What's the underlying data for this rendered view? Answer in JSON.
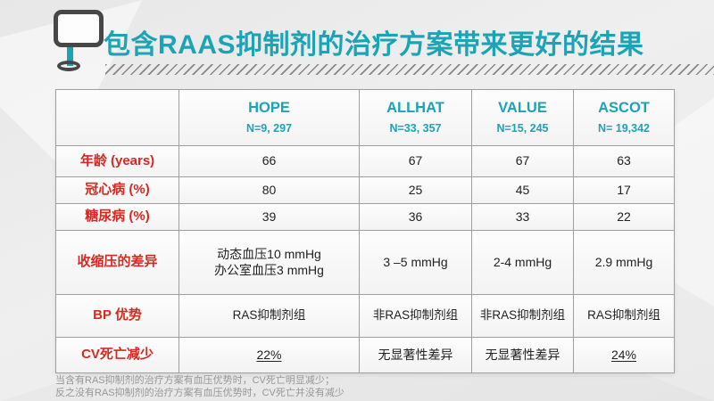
{
  "title": "包含RAAS抑制剂的治疗方案带来更好的结果",
  "colors": {
    "accent_teal": "#1ba3b6",
    "label_red": "#d42a22",
    "table_border_gray": "#9e9e9e",
    "icon_dark_gray": "#474747"
  },
  "table": {
    "corner": "",
    "columns": [
      {
        "name": "HOPE",
        "n": "N=9, 297"
      },
      {
        "name": "ALLHAT",
        "n": "N=33, 357"
      },
      {
        "name": "VALUE",
        "n": "N=15, 245"
      },
      {
        "name": "ASCOT",
        "n": "N= 19,342"
      }
    ],
    "rows": [
      {
        "label": "年龄 (years)",
        "values": [
          "66",
          "67",
          "67",
          "63"
        ]
      },
      {
        "label": "冠心病 (%)",
        "values": [
          "80",
          "25",
          "45",
          "17"
        ]
      },
      {
        "label": "糖尿病 (%)",
        "values": [
          "39",
          "36",
          "33",
          "22"
        ]
      },
      {
        "label": "收缩压的差异",
        "values": [
          "动态血压10 mmHg\n办公室血压3 mmHg",
          "3 –5 mmHg",
          "2-4 mmHg",
          "2.9 mmHg"
        ]
      },
      {
        "label": "BP 优势",
        "values": [
          "RAS抑制剂组",
          "非RAS抑制剂组",
          "非RAS抑制剂组",
          "RAS抑制剂组"
        ]
      },
      {
        "label": "CV死亡减少",
        "values": [
          "22%",
          "无显著性差异",
          "无显著性差异",
          "24%"
        ]
      }
    ]
  },
  "footnote": {
    "line1": "当含有RAS抑制剂的治疗方案有血压优势时，CV死亡明显减少；",
    "line2": "反之没有RAS抑制剂的治疗方案有血压优势时，CV死亡并没有减少"
  }
}
